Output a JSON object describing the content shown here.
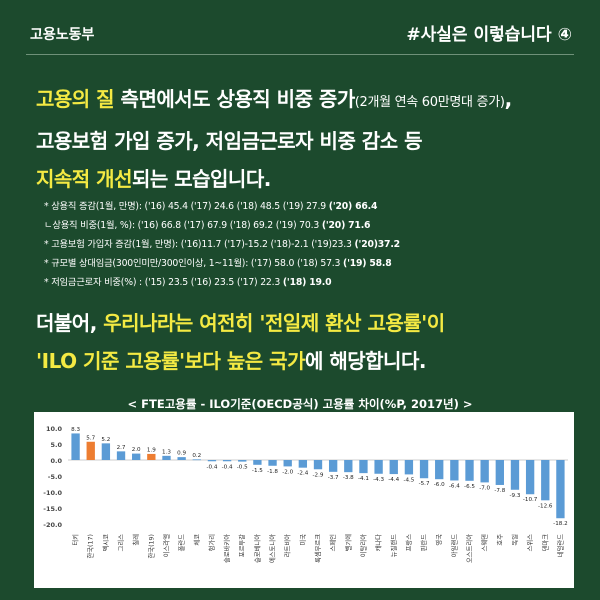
{
  "header": {
    "left": "고용노동부",
    "right": "#사실은 이렇습니다 ④"
  },
  "headline1": {
    "line1_hl": "고용의 질",
    "line1_a": " 측면에서도 상용직 비중 증가",
    "line1_small": "(2개월 연속 60만명대 증가)",
    "line1_end": ",",
    "line2": "고용보험 가입 증가, 저임금근로자 비중 감소 등",
    "line3_hl": "지속적 개선",
    "line3_b": "되는 모습입니다."
  },
  "notes": [
    {
      "text": "* 상용직 증감(1월, 만명): ('16) 45.4 ('17) 24.6 ('18) 48.5 ('19) 27.9 ",
      "bold": "('20) 66.4"
    },
    {
      "text": "  ㄴ상용직 비중(1월, %): ('16) 66.8 ('17) 67.9 ('18) 69.2 ('19) 70.3 ",
      "bold": "('20) 71.6"
    },
    {
      "text": "* 고용보험 가입자 증감(1월, 만명): ('16)11.7 ('17)-15.2 ('18)-2.1 ('19)23.3 ",
      "bold": "('20)37.2"
    },
    {
      "text": "* 규모별 상대임금(300인미만/300인이상, 1~11월): ('17) 58.0 ('18) 57.3 ",
      "bold": "('19) 58.8"
    },
    {
      "text": "* 저임금근로자 비중(%) : ('15) 23.5 ('16) 23.5 ('17) 22.3 ",
      "bold": "('18) 19.0"
    }
  ],
  "headline2": {
    "line1_a": "더불어, ",
    "line1_hl": "우리나라는 여전히 '전일제 환산 고용률'이",
    "line2_hl": "'ILO 기준 고용률'보다 높은 국가",
    "line2_b": "에 해당합니다."
  },
  "colors": {
    "background": "#1c4a2d",
    "highlight": "#f4ea43",
    "bar_default": "#5b9bd5",
    "bar_highlight": "#ed7d31"
  },
  "chart_data": {
    "type": "bar",
    "title": "< FTE고용률 - ILO기준(OECD공식) 고용률 차이(%P, 2017년) >",
    "categories": [
      "터키",
      "한국(17)",
      "멕시코",
      "그리스",
      "칠레",
      "한국(19)",
      "이스라엘",
      "폴란드",
      "체코",
      "헝가리",
      "슬로바키아",
      "포르투갈",
      "슬로베니아",
      "에스토니아",
      "라트비아",
      "미국",
      "룩셈부르크",
      "스페인",
      "벨기에",
      "이탈리아",
      "캐나다",
      "뉴질랜드",
      "프랑스",
      "핀란드",
      "영국",
      "아일랜드",
      "오스트리아",
      "스웨덴",
      "호주",
      "독일",
      "스위스",
      "덴마크",
      "네덜란드"
    ],
    "values": [
      8.3,
      5.7,
      5.2,
      2.7,
      2.0,
      1.9,
      1.3,
      0.9,
      0.2,
      -0.4,
      -0.4,
      -0.5,
      -1.5,
      -1.8,
      -2.0,
      -2.4,
      -2.9,
      -3.7,
      -3.8,
      -4.1,
      -4.3,
      -4.4,
      -4.5,
      -5.7,
      -6.0,
      -6.4,
      -6.5,
      -7.0,
      -7.8,
      -9.3,
      -10.7,
      -12.6,
      -18.2
    ],
    "highlight_categories": [
      "한국(17)",
      "한국(19)"
    ],
    "y_ticks": [
      "10.0",
      "5.0",
      "0.0",
      "-5.0",
      "-10.0",
      "-15.0",
      "-20.0"
    ],
    "ylim": [
      -20,
      10
    ],
    "grid": false,
    "legend": false
  }
}
